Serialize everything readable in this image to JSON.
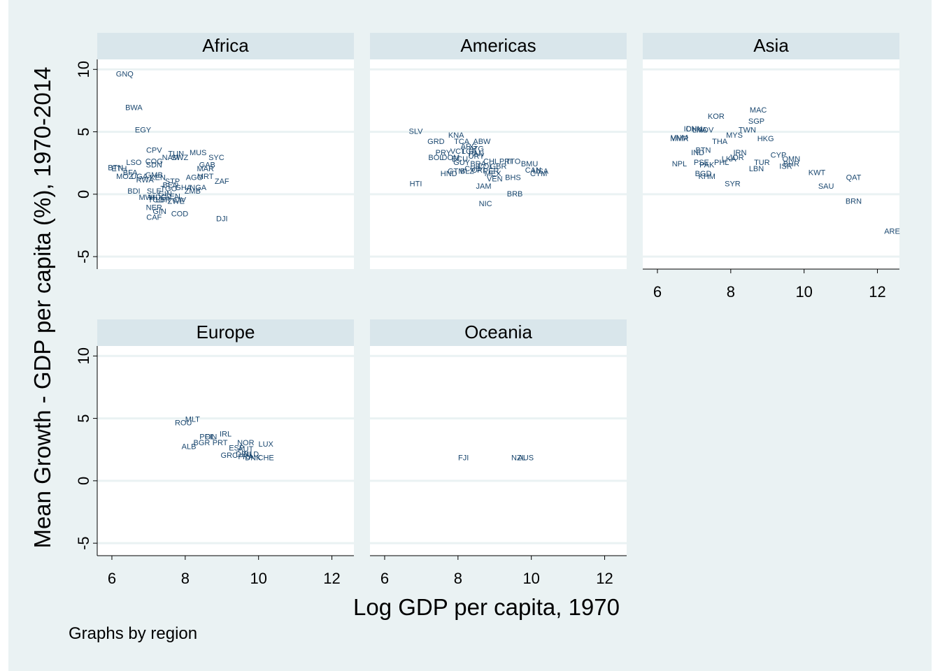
{
  "chart_data": {
    "type": "scatter",
    "xlabel": "Log GDP per capita, 1970",
    "ylabel": "Mean Growth - GDP per capita (%), 1970-2014",
    "note": "Graphs by region",
    "xlim": [
      5.6,
      12.6
    ],
    "ylim": [
      -6,
      10.8
    ],
    "xticks": [
      6,
      8,
      10,
      12
    ],
    "yticks": [
      -5,
      0,
      5,
      10
    ],
    "grid": true,
    "marker": "label",
    "panels": [
      {
        "name": "Africa",
        "points": [
          {
            "label": "GNQ",
            "x": 6.35,
            "y": 9.6
          },
          {
            "label": "BWA",
            "x": 6.6,
            "y": 6.9
          },
          {
            "label": "EGY",
            "x": 6.85,
            "y": 5.1
          },
          {
            "label": "CPV",
            "x": 7.15,
            "y": 3.5
          },
          {
            "label": "TUN",
            "x": 7.75,
            "y": 3.2
          },
          {
            "label": "MUS",
            "x": 8.35,
            "y": 3.3
          },
          {
            "label": "SYC",
            "x": 8.85,
            "y": 2.9
          },
          {
            "label": "NAM",
            "x": 7.6,
            "y": 2.9
          },
          {
            "label": "SWZ",
            "x": 7.85,
            "y": 2.9
          },
          {
            "label": "COG",
            "x": 7.15,
            "y": 2.6
          },
          {
            "label": "LSO",
            "x": 6.6,
            "y": 2.5
          },
          {
            "label": "SDN",
            "x": 7.15,
            "y": 2.3
          },
          {
            "label": "GAB",
            "x": 8.6,
            "y": 2.3
          },
          {
            "label": "BTN",
            "x": 6.1,
            "y": 2.1
          },
          {
            "label": "ETH",
            "x": 6.2,
            "y": 2.0
          },
          {
            "label": "MAR",
            "x": 8.55,
            "y": 2.0
          },
          {
            "label": "BFA",
            "x": 6.5,
            "y": 1.7
          },
          {
            "label": "MOZ",
            "x": 6.35,
            "y": 1.4
          },
          {
            "label": "UGA",
            "x": 6.75,
            "y": 1.4
          },
          {
            "label": "GMB",
            "x": 7.15,
            "y": 1.5
          },
          {
            "label": "KEN",
            "x": 7.25,
            "y": 1.3
          },
          {
            "label": "MRT",
            "x": 8.55,
            "y": 1.4
          },
          {
            "label": "AGO",
            "x": 8.25,
            "y": 1.3
          },
          {
            "label": "RWA",
            "x": 6.9,
            "y": 1.1
          },
          {
            "label": "STP",
            "x": 7.65,
            "y": 1.0
          },
          {
            "label": "ZAF",
            "x": 9.0,
            "y": 1.0
          },
          {
            "label": "BEN",
            "x": 7.6,
            "y": 0.7
          },
          {
            "label": "GHA",
            "x": 7.95,
            "y": 0.5
          },
          {
            "label": "NGA",
            "x": 8.35,
            "y": 0.5
          },
          {
            "label": "TGO",
            "x": 7.55,
            "y": 0.4
          },
          {
            "label": "ZMB",
            "x": 8.2,
            "y": 0.2
          },
          {
            "label": "BDI",
            "x": 6.6,
            "y": 0.2
          },
          {
            "label": "SLE",
            "x": 7.15,
            "y": 0.2
          },
          {
            "label": "GIN",
            "x": 7.45,
            "y": 0.0
          },
          {
            "label": "MWI",
            "x": 6.95,
            "y": -0.3
          },
          {
            "label": "MDG",
            "x": 7.25,
            "y": -0.3
          },
          {
            "label": "SEN",
            "x": 7.65,
            "y": -0.2
          },
          {
            "label": "CIV",
            "x": 7.85,
            "y": -0.5
          },
          {
            "label": "LBR",
            "x": 7.4,
            "y": -0.5
          },
          {
            "label": "ZWE",
            "x": 7.75,
            "y": -0.6
          },
          {
            "label": "TCD",
            "x": 7.2,
            "y": -0.5
          },
          {
            "label": "NER",
            "x": 7.15,
            "y": -1.1
          },
          {
            "label": "GIN",
            "x": 7.3,
            "y": -1.4
          },
          {
            "label": "COD",
            "x": 7.85,
            "y": -1.6
          },
          {
            "label": "CAF",
            "x": 7.15,
            "y": -1.9
          },
          {
            "label": "DJI",
            "x": 9.0,
            "y": -2.0
          }
        ]
      },
      {
        "name": "Americas",
        "points": [
          {
            "label": "SLV",
            "x": 6.85,
            "y": 5.0
          },
          {
            "label": "KNA",
            "x": 7.95,
            "y": 4.7
          },
          {
            "label": "GRD",
            "x": 7.4,
            "y": 4.2
          },
          {
            "label": "TCA",
            "x": 8.1,
            "y": 4.2
          },
          {
            "label": "ABW",
            "x": 8.65,
            "y": 4.2
          },
          {
            "label": "ARG",
            "x": 8.3,
            "y": 3.8
          },
          {
            "label": "ATG",
            "x": 8.5,
            "y": 3.6
          },
          {
            "label": "LCA",
            "x": 8.3,
            "y": 3.4
          },
          {
            "label": "VCT",
            "x": 8.0,
            "y": 3.4
          },
          {
            "label": "PRY",
            "x": 7.6,
            "y": 3.3
          },
          {
            "label": "PAN",
            "x": 8.5,
            "y": 3.2
          },
          {
            "label": "URY",
            "x": 8.5,
            "y": 3.0
          },
          {
            "label": "BOL",
            "x": 7.4,
            "y": 2.9
          },
          {
            "label": "DOM",
            "x": 7.8,
            "y": 2.9
          },
          {
            "label": "ECU",
            "x": 8.05,
            "y": 2.8
          },
          {
            "label": "CHL",
            "x": 8.9,
            "y": 2.6
          },
          {
            "label": "TTO",
            "x": 9.5,
            "y": 2.6
          },
          {
            "label": "PRI",
            "x": 9.3,
            "y": 2.6
          },
          {
            "label": "GUY",
            "x": 8.1,
            "y": 2.5
          },
          {
            "label": "BRA",
            "x": 8.55,
            "y": 2.4
          },
          {
            "label": "BMU",
            "x": 9.95,
            "y": 2.4
          },
          {
            "label": "COL",
            "x": 8.75,
            "y": 2.2
          },
          {
            "label": "GBR",
            "x": 9.1,
            "y": 2.2
          },
          {
            "label": "CUB",
            "x": 8.4,
            "y": 2.0
          },
          {
            "label": "CRI",
            "x": 8.55,
            "y": 1.9
          },
          {
            "label": "CAN",
            "x": 10.05,
            "y": 1.9
          },
          {
            "label": "USA",
            "x": 10.25,
            "y": 1.8
          },
          {
            "label": "GTM",
            "x": 7.95,
            "y": 1.8
          },
          {
            "label": "BLZ",
            "x": 8.25,
            "y": 1.8
          },
          {
            "label": "PER",
            "x": 8.9,
            "y": 1.8
          },
          {
            "label": "HND",
            "x": 7.75,
            "y": 1.6
          },
          {
            "label": "CYM",
            "x": 10.2,
            "y": 1.6
          },
          {
            "label": "MEX",
            "x": 8.95,
            "y": 1.6
          },
          {
            "label": "BHS",
            "x": 9.5,
            "y": 1.3
          },
          {
            "label": "VEN",
            "x": 9.0,
            "y": 1.2
          },
          {
            "label": "HTI",
            "x": 6.85,
            "y": 0.8
          },
          {
            "label": "JAM",
            "x": 8.7,
            "y": 0.6
          },
          {
            "label": "BRB",
            "x": 9.55,
            "y": 0.0
          },
          {
            "label": "NIC",
            "x": 8.75,
            "y": -0.8
          }
        ]
      },
      {
        "name": "Asia",
        "points": [
          {
            "label": "MAC",
            "x": 8.75,
            "y": 6.7
          },
          {
            "label": "KOR",
            "x": 7.6,
            "y": 6.2
          },
          {
            "label": "SGP",
            "x": 8.7,
            "y": 5.8
          },
          {
            "label": "TWN",
            "x": 8.45,
            "y": 5.1
          },
          {
            "label": "IDN",
            "x": 6.9,
            "y": 5.2
          },
          {
            "label": "CHN",
            "x": 7.0,
            "y": 5.2
          },
          {
            "label": "LKA",
            "x": 7.15,
            "y": 5.1
          },
          {
            "label": "MDV",
            "x": 7.3,
            "y": 5.1
          },
          {
            "label": "MYS",
            "x": 8.1,
            "y": 4.7
          },
          {
            "label": "HKG",
            "x": 8.95,
            "y": 4.4
          },
          {
            "label": "VNM",
            "x": 6.6,
            "y": 4.5
          },
          {
            "label": "MMR",
            "x": 6.6,
            "y": 4.4
          },
          {
            "label": "THA",
            "x": 7.7,
            "y": 4.2
          },
          {
            "label": "BTN",
            "x": 7.25,
            "y": 3.5
          },
          {
            "label": "IND",
            "x": 7.1,
            "y": 3.3
          },
          {
            "label": "IRN",
            "x": 8.25,
            "y": 3.3
          },
          {
            "label": "CYP",
            "x": 9.3,
            "y": 3.1
          },
          {
            "label": "JOR",
            "x": 8.15,
            "y": 2.9
          },
          {
            "label": "OMN",
            "x": 9.65,
            "y": 2.8
          },
          {
            "label": "LKA",
            "x": 7.95,
            "y": 2.8
          },
          {
            "label": "PHL",
            "x": 7.75,
            "y": 2.5
          },
          {
            "label": "NPL",
            "x": 6.6,
            "y": 2.4
          },
          {
            "label": "PSE",
            "x": 7.2,
            "y": 2.5
          },
          {
            "label": "TUR",
            "x": 8.85,
            "y": 2.5
          },
          {
            "label": "BHR",
            "x": 9.65,
            "y": 2.4
          },
          {
            "label": "PAK",
            "x": 7.35,
            "y": 2.3
          },
          {
            "label": "ISR",
            "x": 9.5,
            "y": 2.2
          },
          {
            "label": "LBN",
            "x": 8.7,
            "y": 2.0
          },
          {
            "label": "KWT",
            "x": 10.35,
            "y": 1.7
          },
          {
            "label": "BGD",
            "x": 7.25,
            "y": 1.6
          },
          {
            "label": "KHM",
            "x": 7.35,
            "y": 1.4
          },
          {
            "label": "QAT",
            "x": 11.35,
            "y": 1.3
          },
          {
            "label": "SYR",
            "x": 8.05,
            "y": 0.8
          },
          {
            "label": "SAU",
            "x": 10.6,
            "y": 0.6
          },
          {
            "label": "BRN",
            "x": 11.35,
            "y": -0.6
          },
          {
            "label": "ARE",
            "x": 12.4,
            "y": -3.0
          }
        ]
      },
      {
        "name": "Europe",
        "points": [
          {
            "label": "MLT",
            "x": 8.2,
            "y": 4.9
          },
          {
            "label": "ROU",
            "x": 7.95,
            "y": 4.6
          },
          {
            "label": "IRL",
            "x": 9.1,
            "y": 3.7
          },
          {
            "label": "POL",
            "x": 8.6,
            "y": 3.5
          },
          {
            "label": "FIN",
            "x": 8.7,
            "y": 3.5
          },
          {
            "label": "NOR",
            "x": 9.65,
            "y": 3.0
          },
          {
            "label": "LUX",
            "x": 10.2,
            "y": 2.9
          },
          {
            "label": "BGR",
            "x": 8.45,
            "y": 3.0
          },
          {
            "label": "PRT",
            "x": 8.95,
            "y": 3.0
          },
          {
            "label": "ALB",
            "x": 8.1,
            "y": 2.7
          },
          {
            "label": "ESP",
            "x": 9.4,
            "y": 2.6
          },
          {
            "label": "AUT",
            "x": 9.65,
            "y": 2.5
          },
          {
            "label": "GRC",
            "x": 9.2,
            "y": 2.0
          },
          {
            "label": "DEU",
            "x": 9.6,
            "y": 2.1
          },
          {
            "label": "NLD",
            "x": 9.8,
            "y": 2.1
          },
          {
            "label": "FRA",
            "x": 9.65,
            "y": 1.9
          },
          {
            "label": "DNK",
            "x": 9.85,
            "y": 1.8
          },
          {
            "label": "CHE",
            "x": 10.2,
            "y": 1.8
          }
        ]
      },
      {
        "name": "Oceania",
        "points": [
          {
            "label": "FJI",
            "x": 8.15,
            "y": 1.8
          },
          {
            "label": "NZL",
            "x": 9.65,
            "y": 1.8
          },
          {
            "label": "AUS",
            "x": 9.85,
            "y": 1.8
          }
        ]
      }
    ]
  }
}
